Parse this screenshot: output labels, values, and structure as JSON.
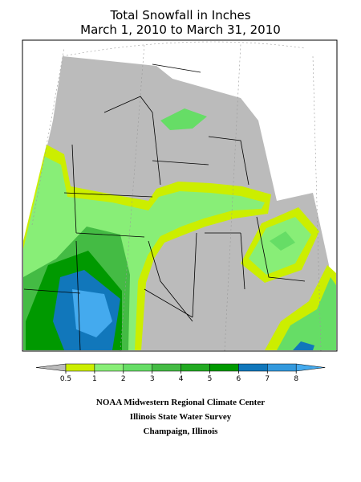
{
  "title": [
    "Total Snowfall in Inches",
    "March 1, 2010 to March 31, 2010"
  ],
  "legend": {
    "ticks": [
      0.5,
      1,
      2,
      3,
      4,
      5,
      6,
      7,
      8
    ],
    "colors": [
      "#bbbbbb",
      "#ccee00",
      "#88ee77",
      "#66dd66",
      "#44bb44",
      "#22aa22",
      "#009900",
      "#1177bb",
      "#3399dd",
      "#44aaee"
    ]
  },
  "credits": [
    "NOAA Midwestern Regional Climate Center",
    "Illinois State Water Survey",
    "Champaign, Illinois"
  ]
}
